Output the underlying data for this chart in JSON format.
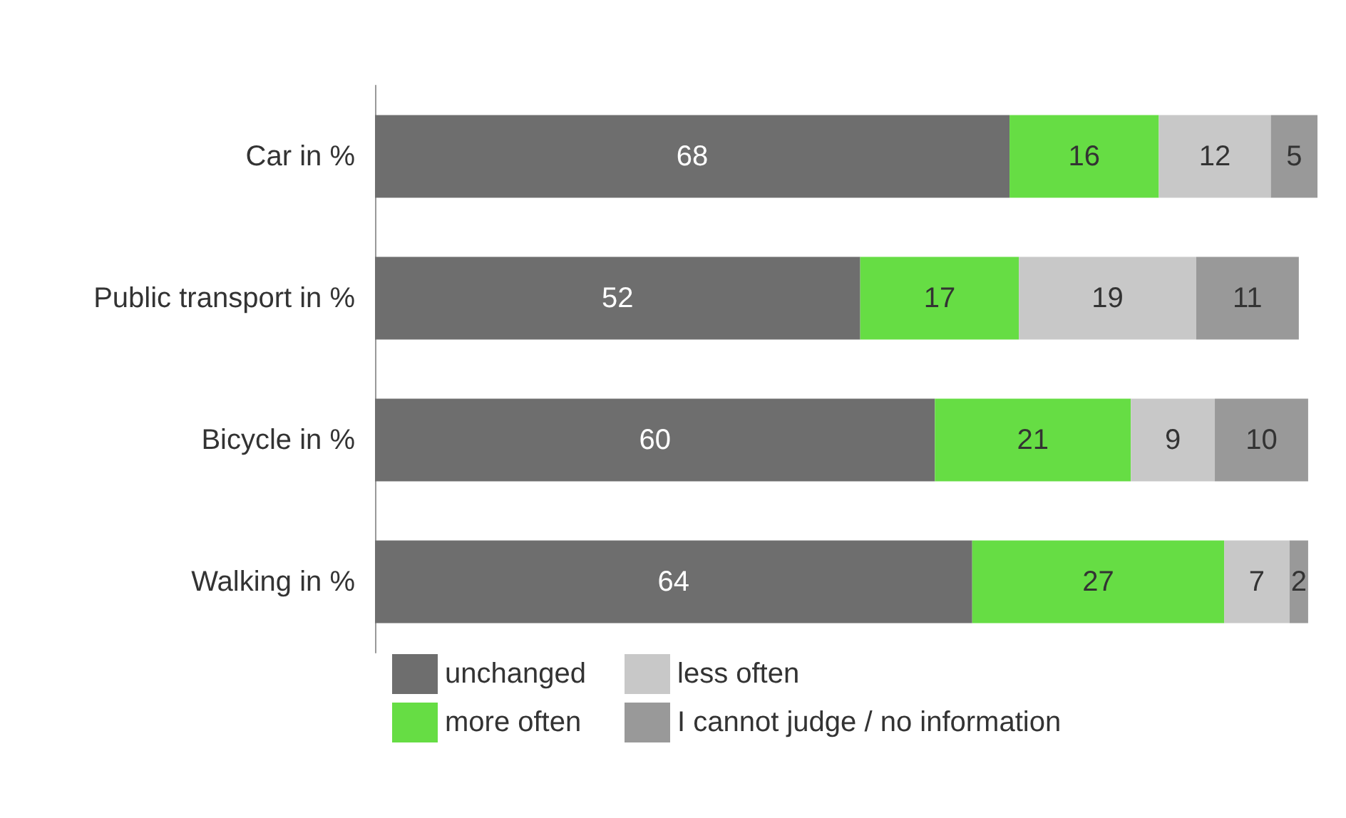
{
  "chart_data": {
    "type": "bar",
    "orientation": "horizontal",
    "stacked": true,
    "categories": [
      "Car in %",
      "Public transport in %",
      "Bicycle in %",
      "Walking in %"
    ],
    "series": [
      {
        "name": "unchanged",
        "color": "#6e6e6e",
        "values": [
          68,
          52,
          60,
          64
        ]
      },
      {
        "name": "more often",
        "color": "#66dd44",
        "values": [
          16,
          17,
          21,
          27
        ]
      },
      {
        "name": "less often",
        "color": "#c8c8c8",
        "values": [
          12,
          19,
          9,
          7
        ]
      },
      {
        "name": "I cannot judge / no information",
        "color": "#999999",
        "values": [
          5,
          11,
          10,
          2
        ]
      }
    ],
    "data_labels": true,
    "legend": "bottom left"
  }
}
